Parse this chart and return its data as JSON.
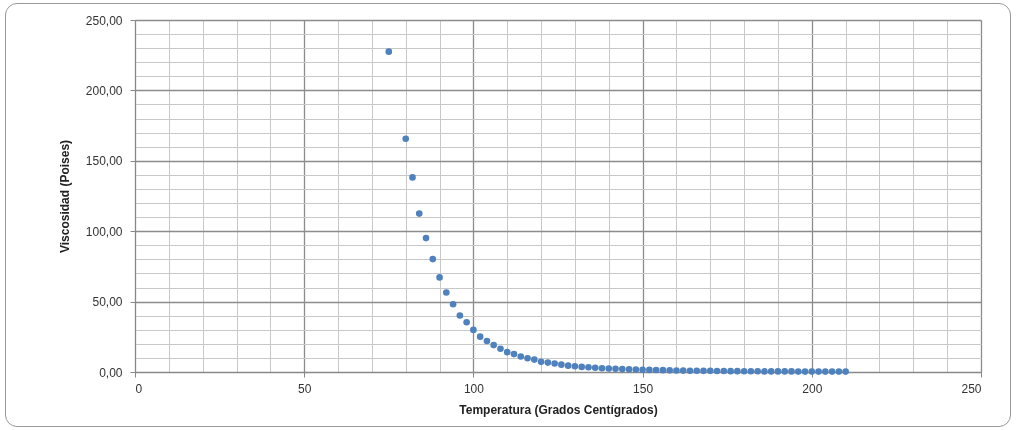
{
  "chart_data": {
    "type": "scatter",
    "xlabel": "Temperatura (Grados Centígrados)",
    "ylabel": "Viscosidad (Poises)",
    "x": [
      75,
      80,
      82,
      84,
      86,
      88,
      90,
      92,
      94,
      96,
      98,
      100,
      102,
      104,
      106,
      108,
      110,
      112,
      114,
      116,
      118,
      120,
      122,
      124,
      126,
      128,
      130,
      132,
      134,
      136,
      138,
      140,
      142,
      144,
      146,
      148,
      150,
      152,
      154,
      156,
      158,
      160,
      162,
      164,
      166,
      168,
      170,
      172,
      174,
      176,
      178,
      180,
      182,
      184,
      186,
      188,
      190,
      192,
      194,
      196,
      198,
      200,
      202,
      204,
      206,
      208,
      210
    ],
    "series": [
      {
        "color": "#4f81bd",
        "values": [
          227.5,
          165.7,
          138.2,
          112.5,
          95.1,
          80.2,
          67.2,
          56.5,
          48.1,
          40.1,
          35.3,
          29.9,
          25.1,
          22,
          19.1,
          16.5,
          14.1,
          12.7,
          11,
          9.8,
          8.8,
          7.2,
          6.7,
          6,
          5.2,
          4.5,
          4.1,
          3.6,
          3.4,
          3,
          2.7,
          2.5,
          2.3,
          2.1,
          1.9,
          1.8,
          1.6,
          1.5,
          1.4,
          1.3,
          1.2,
          1.1,
          1,
          0.9,
          0.9,
          0.8,
          0.8,
          0.7,
          0.7,
          0.6,
          0.6,
          0.5,
          0.5,
          0.5,
          0.4,
          0.4,
          0.4,
          0.4,
          0.4,
          0.3,
          0.3,
          0.3,
          0.3,
          0.3,
          0.3,
          0.3,
          0.3
        ]
      }
    ],
    "xlim": [
      0,
      250
    ],
    "xticks": [
      0,
      {
        "value": 10,
        "label": null
      },
      {
        "value": 20,
        "label": null
      },
      {
        "value": 30,
        "label": null
      },
      {
        "value": 40,
        "label": null
      },
      50,
      {
        "value": 60,
        "label": null
      },
      {
        "value": 70,
        "label": null
      },
      {
        "value": 80,
        "label": null
      },
      {
        "value": 90,
        "label": null
      },
      100,
      {
        "value": 110,
        "label": null
      },
      {
        "value": 120,
        "label": null
      },
      {
        "value": 130,
        "label": null
      },
      {
        "value": 140,
        "label": null
      },
      150,
      {
        "value": 160,
        "label": null
      },
      {
        "value": 170,
        "label": null
      },
      {
        "value": 180,
        "label": null
      },
      {
        "value": 190,
        "label": null
      },
      200,
      {
        "value": 210,
        "label": null
      },
      {
        "value": 220,
        "label": null
      },
      {
        "value": 230,
        "label": null
      },
      {
        "value": 240,
        "label": null
      },
      250
    ],
    "ylim": [
      0,
      250
    ],
    "yticks": [
      {
        "value": 0,
        "label": "0,00"
      },
      {
        "value": 10,
        "label": null
      },
      {
        "value": 20,
        "label": null
      },
      {
        "value": 30,
        "label": null
      },
      {
        "value": 40,
        "label": null
      },
      {
        "value": 50,
        "label": "50,00"
      },
      {
        "value": 60,
        "label": null
      },
      {
        "value": 70,
        "label": null
      },
      {
        "value": 80,
        "label": null
      },
      {
        "value": 90,
        "label": null
      },
      {
        "value": 100,
        "label": "100,00"
      },
      {
        "value": 110,
        "label": null
      },
      {
        "value": 120,
        "label": null
      },
      {
        "value": 130,
        "label": null
      },
      {
        "value": 140,
        "label": null
      },
      {
        "value": 150,
        "label": "150,00"
      },
      {
        "value": 160,
        "label": null
      },
      {
        "value": 170,
        "label": null
      },
      {
        "value": 180,
        "label": null
      },
      {
        "value": 190,
        "label": null
      },
      {
        "value": 200,
        "label": "200,00"
      },
      {
        "value": 210,
        "label": null
      },
      {
        "value": 220,
        "label": null
      },
      {
        "value": 230,
        "label": null
      },
      {
        "value": 240,
        "label": null
      },
      {
        "value": 250,
        "label": "250,00"
      }
    ],
    "grid": true,
    "marker": "circle"
  }
}
